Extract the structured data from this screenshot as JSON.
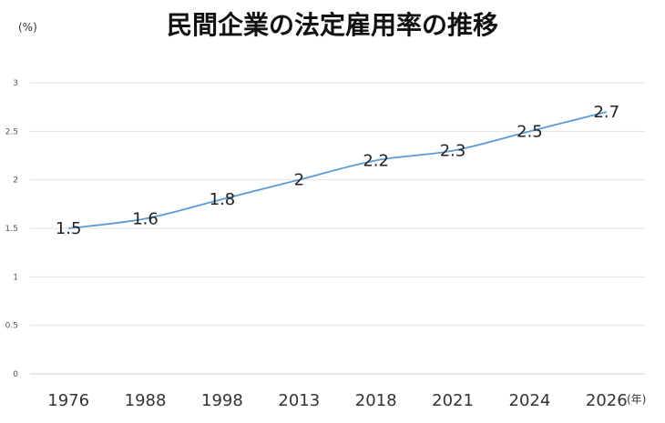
{
  "chart_data": {
    "type": "line",
    "title": "民間企業の法定雇用率の推移",
    "ylabel": "(%)",
    "xlabel": "(年)",
    "categories": [
      "1976",
      "1988",
      "1998",
      "2013",
      "2018",
      "2021",
      "2024",
      "2026"
    ],
    "values": [
      1.5,
      1.6,
      1.8,
      2,
      2.2,
      2.3,
      2.5,
      2.7
    ],
    "data_labels": [
      "1.5",
      "1.6",
      "1.8",
      "2",
      "2.2",
      "2.3",
      "2.5",
      "2.7"
    ],
    "y_ticks": [
      "0",
      "0.5",
      "1",
      "1.5",
      "2",
      "2.5",
      "3"
    ],
    "ylim": [
      0,
      3
    ],
    "grid": true,
    "legend": "none",
    "line_color": "#5b9bd5"
  }
}
